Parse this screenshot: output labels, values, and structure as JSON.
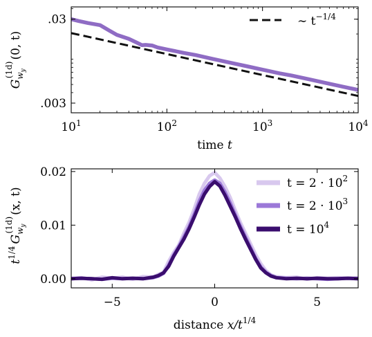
{
  "chart_data": [
    {
      "type": "line",
      "xscale": "log",
      "yscale": "log",
      "xlim": [
        10,
        10000
      ],
      "ylim": [
        0.0023,
        0.042
      ],
      "grid": false,
      "legend_position": "top-right",
      "xticks": [
        {
          "value": 10,
          "base": "10",
          "exp": "1"
        },
        {
          "value": 100,
          "base": "10",
          "exp": "2"
        },
        {
          "value": 1000,
          "base": "10",
          "exp": "3"
        },
        {
          "value": 10000,
          "base": "10",
          "exp": "4"
        }
      ],
      "yticks": [
        {
          "value": 0.03,
          "label": ".03"
        },
        {
          "value": 0.003,
          "label": ".003"
        }
      ],
      "xlabel": {
        "text": "time ",
        "var": "t"
      },
      "ylabel": {
        "main": "G",
        "sup": "(1d)",
        "sub": "w",
        "subsub": "y",
        "args": "(0, t)"
      },
      "series": [
        {
          "kind": "simulation",
          "color": "#8f6cc4",
          "points": [
            [
              10,
              0.03
            ],
            [
              12,
              0.0285
            ],
            [
              15,
              0.027
            ],
            [
              20,
              0.0255
            ],
            [
              25,
              0.022
            ],
            [
              30,
              0.0195
            ],
            [
              40,
              0.0175
            ],
            [
              50,
              0.0155
            ],
            [
              55,
              0.0147
            ],
            [
              60,
              0.0148
            ],
            [
              70,
              0.0146
            ],
            [
              80,
              0.0138
            ],
            [
              100,
              0.0131
            ],
            [
              150,
              0.0119
            ],
            [
              200,
              0.0112
            ],
            [
              300,
              0.0101
            ],
            [
              500,
              0.0089
            ],
            [
              700,
              0.0082
            ],
            [
              1000,
              0.0075
            ],
            [
              1500,
              0.0068
            ],
            [
              2000,
              0.0064
            ],
            [
              3000,
              0.0058
            ],
            [
              5000,
              0.0051
            ],
            [
              7000,
              0.0047
            ],
            [
              10000,
              0.0043
            ]
          ]
        },
        {
          "kind": "power-law",
          "name_prefix": "∼ t",
          "name_exp": "−1/4",
          "color": "#111111",
          "points": [
            [
              10,
              0.0205
            ],
            [
              10000,
              0.00365
            ]
          ]
        }
      ]
    },
    {
      "type": "line",
      "xlim": [
        -7,
        7
      ],
      "ylim": [
        -0.0017,
        0.0205
      ],
      "grid": false,
      "legend_position": "top-right",
      "xticks": [
        {
          "value": -5,
          "label": "−5"
        },
        {
          "value": 0,
          "label": "0"
        },
        {
          "value": 5,
          "label": "5"
        }
      ],
      "yticks": [
        {
          "value": 0,
          "label": "0.00"
        },
        {
          "value": 0.01,
          "label": "0.01"
        },
        {
          "value": 0.02,
          "label": "0.02"
        }
      ],
      "xlabel": {
        "text": "distance ",
        "var": "x/t",
        "exp": "1/4"
      },
      "ylabel": {
        "pre": "t",
        "pre_sup": "1/4",
        "main": "G",
        "sup": "(1d)",
        "sub": "w",
        "subsub": "y",
        "args": "(x, t)"
      },
      "x": [
        -7,
        -6.5,
        -6,
        -5.5,
        -5,
        -4.5,
        -4,
        -3.5,
        -3,
        -2.75,
        -2.5,
        -2.25,
        -2,
        -1.75,
        -1.5,
        -1.25,
        -1,
        -0.75,
        -0.5,
        -0.25,
        0,
        0.25,
        0.5,
        0.75,
        1,
        1.25,
        1.5,
        1.75,
        2,
        2.25,
        2.5,
        2.75,
        3,
        3.5,
        4,
        4.5,
        5,
        5.5,
        6,
        6.5,
        7
      ],
      "series": [
        {
          "legend_label": "t = 2 · 10",
          "legend_exp": "2",
          "color": "#d8c8ee",
          "values": [
            0.0001,
            0.0002,
            -0.0002,
            0.0003,
            0.0001,
            0.0003,
            -0.0001,
            0.0004,
            0.0003,
            0.0008,
            0.0012,
            0.0032,
            0.0049,
            0.0063,
            0.0085,
            0.0105,
            0.013,
            0.0158,
            0.0178,
            0.0192,
            0.0198,
            0.0188,
            0.0172,
            0.0152,
            0.0128,
            0.0105,
            0.0085,
            0.0065,
            0.0045,
            0.0028,
            0.0015,
            0.0007,
            0.0004,
            0.0002,
            0.0003,
            -0.0001,
            0.0002,
            0.0001,
            0.0002,
            0.0001,
            0.0002
          ]
        },
        {
          "legend_label": "t = 2 · 10",
          "legend_exp": "3",
          "color": "#9b78d8",
          "values": [
            0.0,
            0.0001,
            0.0,
            -0.0001,
            0.0001,
            0.0,
            0.0001,
            0.0,
            0.0002,
            0.0005,
            0.001,
            0.0025,
            0.0044,
            0.006,
            0.0078,
            0.0097,
            0.012,
            0.0145,
            0.0165,
            0.0178,
            0.0184,
            0.0178,
            0.0162,
            0.0142,
            0.012,
            0.0098,
            0.0078,
            0.0058,
            0.0038,
            0.0022,
            0.0012,
            0.0006,
            0.0002,
            0.0001,
            0.0,
            0.0001,
            0.0,
            -0.0001,
            0.0,
            0.0001,
            0.0
          ]
        },
        {
          "legend_label": "t = 10",
          "legend_exp": "4",
          "color": "#3a0d6e",
          "values": [
            0.0,
            0.0001,
            0.0,
            -0.0001,
            0.0002,
            0.0,
            0.0001,
            0.0,
            0.0003,
            0.0006,
            0.0011,
            0.0023,
            0.0042,
            0.0058,
            0.0074,
            0.0093,
            0.0115,
            0.0138,
            0.0158,
            0.0172,
            0.0181,
            0.0173,
            0.0156,
            0.0136,
            0.0116,
            0.0094,
            0.0074,
            0.0055,
            0.0036,
            0.002,
            0.0011,
            0.0005,
            0.0002,
            0.0,
            0.0001,
            0.0,
            0.0001,
            0.0,
            0.0,
            0.0001,
            0.0
          ]
        }
      ]
    }
  ]
}
